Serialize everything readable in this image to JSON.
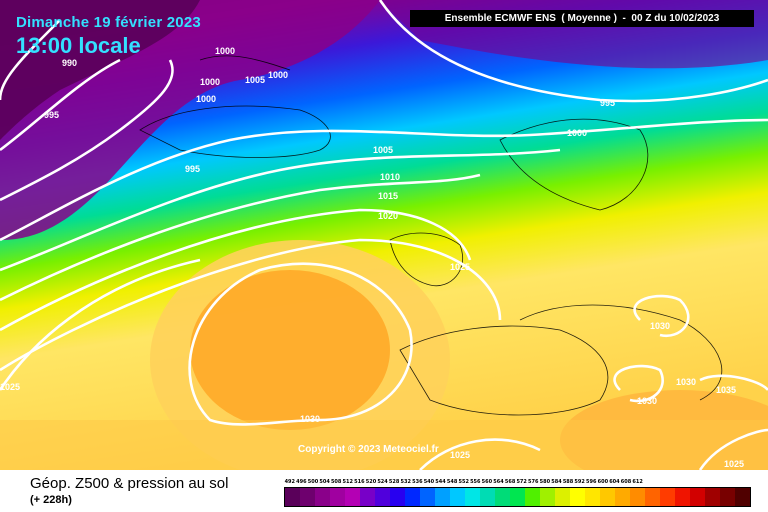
{
  "header": {
    "date": "Dimanche 19 février 2023",
    "time": "13:00 locale",
    "model": "Ensemble ECMWF ENS  ( Moyenne )  -  00 Z du 10/02/2023"
  },
  "footer": {
    "field": "Géop. Z500 & pression au sol",
    "lead": "(+ 228h)",
    "copyright": "Copyright © 2023 Meteociel.fr"
  },
  "legend": {
    "ticks": [
      "492",
      "496",
      "500",
      "504",
      "508",
      "512",
      "516",
      "520",
      "524",
      "528",
      "532",
      "536",
      "540",
      "544",
      "548",
      "552",
      "556",
      "560",
      "564",
      "568",
      "572",
      "576",
      "580",
      "584",
      "588",
      "592",
      "596",
      "600",
      "604",
      "608",
      "612"
    ],
    "colors": [
      "#5a005a",
      "#6e006e",
      "#8a008a",
      "#a000a0",
      "#b400b4",
      "#7800c8",
      "#5000dc",
      "#2800f0",
      "#0028ff",
      "#0064ff",
      "#00a0ff",
      "#00c8ff",
      "#00e6e6",
      "#00dcb4",
      "#00dc78",
      "#00e650",
      "#50f000",
      "#a0f000",
      "#dcf000",
      "#ffff00",
      "#ffe600",
      "#ffc800",
      "#ffaa00",
      "#ff8c00",
      "#ff6400",
      "#ff3c00",
      "#f01400",
      "#d20000",
      "#a00000",
      "#780000",
      "#500000"
    ]
  },
  "isobars": {
    "labels": [
      "990",
      "995",
      "1000",
      "1000",
      "1000",
      "1005",
      "1000",
      "995",
      "995",
      "1000",
      "1005",
      "1010",
      "1015",
      "1020",
      "1025",
      "1030",
      "1030",
      "1030",
      "1035",
      "1025",
      "1030",
      "1025",
      "1025"
    ]
  },
  "colors": {
    "title": "#33e0ff",
    "isobar": "#ffffff"
  }
}
